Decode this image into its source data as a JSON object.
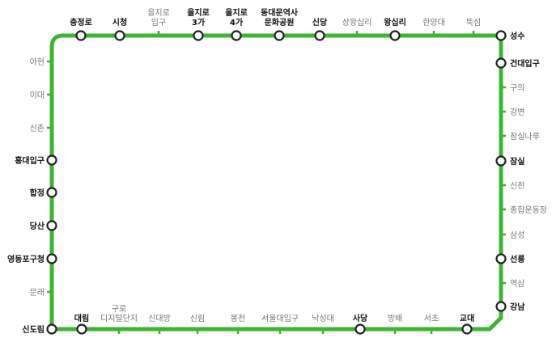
{
  "line": {
    "color": "#3cb532",
    "transfer_fill": "#ffffff",
    "transfer_stroke": "#222222"
  },
  "stations": [
    {
      "id": "chungjeongno",
      "lines": [
        "충정로"
      ],
      "transfer": true
    },
    {
      "id": "city-hall",
      "lines": [
        "시청"
      ],
      "transfer": true
    },
    {
      "id": "euljiro-ipgu",
      "lines": [
        "을지로",
        "입구"
      ],
      "transfer": false
    },
    {
      "id": "euljiro-3ga",
      "lines": [
        "을지로",
        "3가"
      ],
      "transfer": true
    },
    {
      "id": "euljiro-4ga",
      "lines": [
        "을지로",
        "4가"
      ],
      "transfer": true
    },
    {
      "id": "ddp",
      "lines": [
        "동대문역사",
        "문화공원"
      ],
      "transfer": true
    },
    {
      "id": "sindang",
      "lines": [
        "신당"
      ],
      "transfer": true
    },
    {
      "id": "sangwangsimni",
      "lines": [
        "상왕십리"
      ],
      "transfer": false
    },
    {
      "id": "wangsimni",
      "lines": [
        "왕십리"
      ],
      "transfer": true
    },
    {
      "id": "hanyang-univ",
      "lines": [
        "한양대"
      ],
      "transfer": false
    },
    {
      "id": "ttukseom",
      "lines": [
        "뚝섬"
      ],
      "transfer": false
    },
    {
      "id": "seongsu",
      "lines": [
        "성수"
      ],
      "transfer": true
    },
    {
      "id": "konkuk-univ",
      "lines": [
        "건대입구"
      ],
      "transfer": true
    },
    {
      "id": "guui",
      "lines": [
        "구의"
      ],
      "transfer": false
    },
    {
      "id": "gangbyeon",
      "lines": [
        "강변"
      ],
      "transfer": false
    },
    {
      "id": "jamsillaru",
      "lines": [
        "잠실나루"
      ],
      "transfer": false
    },
    {
      "id": "jamsil",
      "lines": [
        "잠실"
      ],
      "transfer": true
    },
    {
      "id": "jamsilsaenae",
      "lines": [
        "신천"
      ],
      "transfer": false
    },
    {
      "id": "sports-complex",
      "lines": [
        "종합운동장"
      ],
      "transfer": false
    },
    {
      "id": "samseong",
      "lines": [
        "삼성"
      ],
      "transfer": false
    },
    {
      "id": "seolleung",
      "lines": [
        "선릉"
      ],
      "transfer": true
    },
    {
      "id": "yeoksam",
      "lines": [
        "역삼"
      ],
      "transfer": false
    },
    {
      "id": "gangnam",
      "lines": [
        "강남"
      ],
      "transfer": true
    },
    {
      "id": "gyodae",
      "lines": [
        "교대"
      ],
      "transfer": true
    },
    {
      "id": "seocho",
      "lines": [
        "서초"
      ],
      "transfer": false
    },
    {
      "id": "bangbae",
      "lines": [
        "방배"
      ],
      "transfer": false
    },
    {
      "id": "sadang",
      "lines": [
        "사당"
      ],
      "transfer": true
    },
    {
      "id": "nakseongdae",
      "lines": [
        "낙성대"
      ],
      "transfer": false
    },
    {
      "id": "snu",
      "lines": [
        "서울대입구"
      ],
      "transfer": false
    },
    {
      "id": "bongcheon",
      "lines": [
        "봉천"
      ],
      "transfer": false
    },
    {
      "id": "sillim",
      "lines": [
        "신림"
      ],
      "transfer": false
    },
    {
      "id": "sindaebang",
      "lines": [
        "신대방"
      ],
      "transfer": false
    },
    {
      "id": "guro-digital",
      "lines": [
        "구로",
        "디지털단지"
      ],
      "transfer": false
    },
    {
      "id": "daerim",
      "lines": [
        "대림"
      ],
      "transfer": true
    },
    {
      "id": "sindorim",
      "lines": [
        "신도림"
      ],
      "transfer": true
    },
    {
      "id": "mullae",
      "lines": [
        "문래"
      ],
      "transfer": false
    },
    {
      "id": "yeongdeungpo-gu-office",
      "lines": [
        "영등포구청"
      ],
      "transfer": true
    },
    {
      "id": "dangsan",
      "lines": [
        "당산"
      ],
      "transfer": true
    },
    {
      "id": "hapjeong",
      "lines": [
        "합정"
      ],
      "transfer": true
    },
    {
      "id": "hongik-univ",
      "lines": [
        "홍대입구"
      ],
      "transfer": true
    },
    {
      "id": "sinchon",
      "lines": [
        "신촌"
      ],
      "transfer": false
    },
    {
      "id": "ewha",
      "lines": [
        "이대"
      ],
      "transfer": false
    },
    {
      "id": "ahyeon",
      "lines": [
        "아현"
      ],
      "transfer": false
    }
  ]
}
